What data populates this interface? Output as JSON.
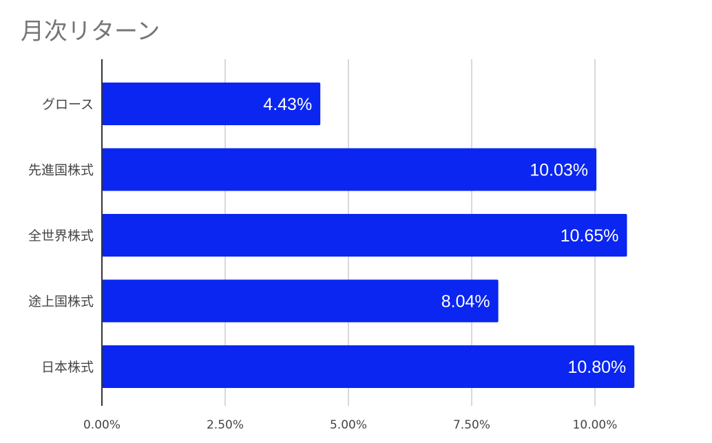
{
  "chart_data": {
    "type": "bar",
    "orientation": "horizontal",
    "title": "月次リターン",
    "categories": [
      "グロース",
      "先進国株式",
      "全世界株式",
      "途上国株式",
      "日本株式"
    ],
    "values": [
      4.43,
      10.03,
      10.65,
      8.04,
      10.8
    ],
    "data_labels": [
      "4.43%",
      "10.03%",
      "10.65%",
      "8.04%",
      "10.80%"
    ],
    "x_ticks": [
      0,
      2.5,
      5,
      7.5,
      10
    ],
    "x_tick_labels": [
      "0.00%",
      "2.50%",
      "5.00%",
      "7.50%",
      "10.00%"
    ],
    "xlim": [
      0,
      10.8
    ],
    "xlabel": "",
    "ylabel": "",
    "grid": "vertical",
    "legend": "none",
    "bar_color": "#0a26f0",
    "grid_color": "#cccccc",
    "axis_color": "#333333"
  }
}
